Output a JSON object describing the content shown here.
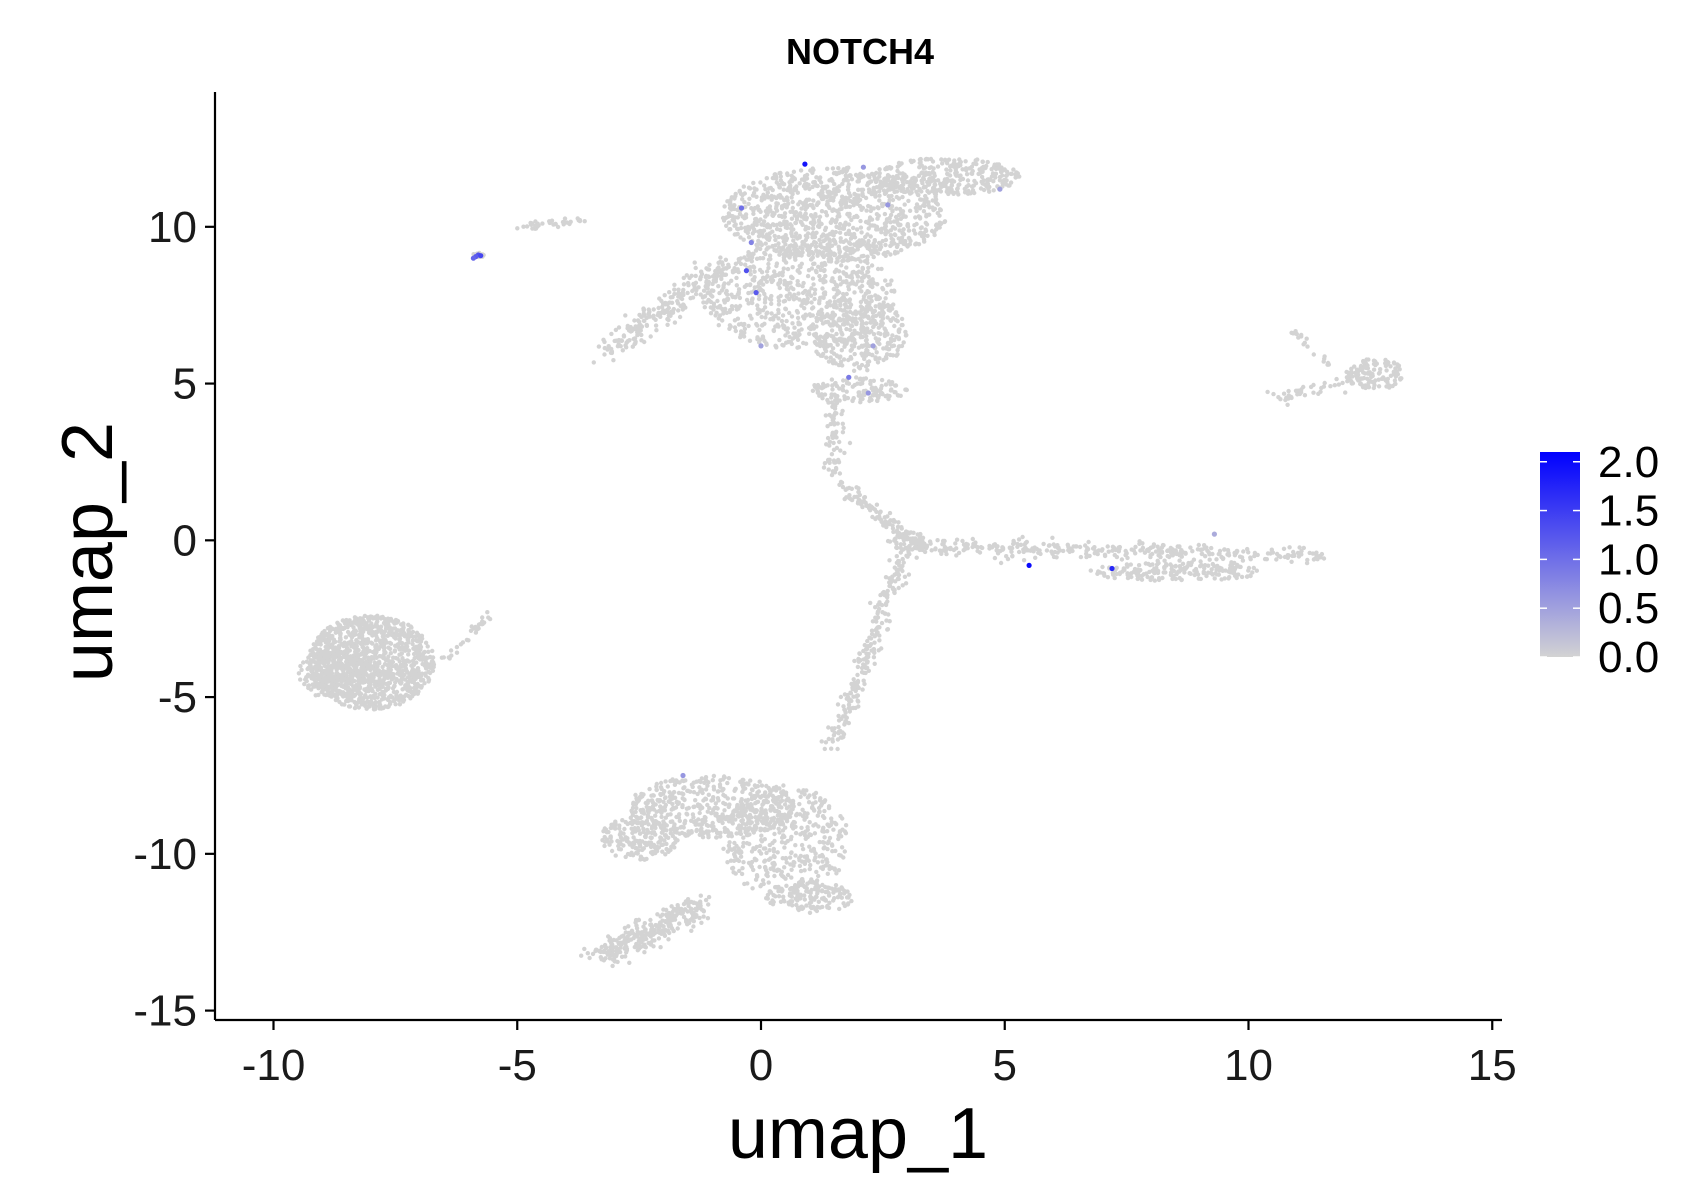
{
  "chart_data": {
    "type": "scatter",
    "title": "NOTCH4",
    "xlabel": "umap_1",
    "ylabel": "umap_2",
    "xlim": [
      -11.2,
      15.2
    ],
    "ylim": [
      -15.3,
      14.3
    ],
    "x_ticks": [
      -10,
      -5,
      0,
      5,
      10,
      15
    ],
    "x_tick_labels": [
      "-10",
      "-5",
      "0",
      "5",
      "10",
      "15"
    ],
    "y_ticks": [
      10,
      5,
      0,
      -5,
      -10,
      -15
    ],
    "y_tick_labels": [
      "10",
      "5",
      "0",
      "-5",
      "-10",
      "-15"
    ],
    "grid": false,
    "color_scale": {
      "low_color": "#d3d3d3",
      "high_color": "#0000ff",
      "min": 0.0,
      "max": 2.1,
      "ticks": [
        2.0,
        1.5,
        1.0,
        0.5,
        0.0
      ],
      "tick_labels": [
        "2.0",
        "1.5",
        "1.0",
        "0.5",
        "0.0"
      ],
      "position": "right"
    },
    "clusters": [
      {
        "shape": "ellipse",
        "cx": -8.0,
        "cy": -3.9,
        "rx": 1.3,
        "ry": 1.5,
        "n": 1200
      },
      {
        "shape": "ellipse",
        "cx": -8.8,
        "cy": -4.3,
        "rx": 0.7,
        "ry": 0.8,
        "n": 200
      },
      {
        "shape": "line",
        "from": [
          -6.5,
          -3.8
        ],
        "to": [
          -5.5,
          -2.3
        ],
        "width": 0.15,
        "n": 30
      },
      {
        "shape": "ellipse",
        "cx": -5.8,
        "cy": 9.1,
        "rx": 0.12,
        "ry": 0.08,
        "n": 15
      },
      {
        "shape": "line",
        "from": [
          -5.0,
          10.0
        ],
        "to": [
          -3.6,
          10.2
        ],
        "width": 0.12,
        "n": 35
      },
      {
        "shape": "ellipse",
        "cx": 1.5,
        "cy": 10.4,
        "rx": 2.3,
        "ry": 1.5,
        "n": 1000
      },
      {
        "shape": "ellipse",
        "cx": 3.8,
        "cy": 11.6,
        "rx": 1.5,
        "ry": 0.6,
        "n": 320
      },
      {
        "shape": "ellipse",
        "cx": 0.8,
        "cy": 7.8,
        "rx": 2.0,
        "ry": 1.7,
        "n": 700
      },
      {
        "shape": "ellipse",
        "cx": 2.0,
        "cy": 6.6,
        "rx": 1.0,
        "ry": 1.2,
        "n": 300
      },
      {
        "shape": "line",
        "from": [
          -3.2,
          6.0
        ],
        "to": [
          -0.8,
          8.8
        ],
        "width": 0.4,
        "n": 220
      },
      {
        "shape": "ellipse",
        "cx": 2.0,
        "cy": 4.8,
        "rx": 1.0,
        "ry": 0.4,
        "n": 120
      },
      {
        "shape": "line",
        "from": [
          1.5,
          4.5
        ],
        "to": [
          1.5,
          2.0
        ],
        "width": 0.2,
        "n": 70
      },
      {
        "shape": "line",
        "from": [
          1.5,
          2.0
        ],
        "to": [
          3.0,
          0.0
        ],
        "width": 0.2,
        "n": 90
      },
      {
        "shape": "ellipse",
        "cx": 3.0,
        "cy": 0.0,
        "rx": 0.4,
        "ry": 0.3,
        "n": 60
      },
      {
        "shape": "line",
        "from": [
          3.0,
          -0.2
        ],
        "to": [
          1.5,
          -6.5
        ],
        "width": 0.25,
        "n": 230
      },
      {
        "shape": "line",
        "from": [
          3.0,
          -0.2
        ],
        "to": [
          11.5,
          -0.5
        ],
        "width": 0.3,
        "n": 350
      },
      {
        "shape": "ellipse",
        "cx": 8.5,
        "cy": -1.0,
        "rx": 1.8,
        "ry": 0.3,
        "n": 180
      },
      {
        "shape": "ellipse",
        "cx": -1.0,
        "cy": -8.5,
        "rx": 1.7,
        "ry": 1.0,
        "n": 500
      },
      {
        "shape": "ellipse",
        "cx": 0.5,
        "cy": -9.6,
        "rx": 1.3,
        "ry": 1.8,
        "n": 450
      },
      {
        "shape": "ellipse",
        "cx": -2.5,
        "cy": -9.5,
        "rx": 0.8,
        "ry": 0.7,
        "n": 200
      },
      {
        "shape": "ellipse",
        "cx": 1.0,
        "cy": -11.4,
        "rx": 0.9,
        "ry": 0.5,
        "n": 150
      },
      {
        "shape": "line",
        "from": [
          -3.3,
          -13.3
        ],
        "to": [
          -1.2,
          -11.6
        ],
        "width": 0.45,
        "n": 300
      },
      {
        "shape": "ellipse",
        "cx": 12.6,
        "cy": 5.3,
        "rx": 0.6,
        "ry": 0.5,
        "n": 120
      },
      {
        "shape": "line",
        "from": [
          10.5,
          4.5
        ],
        "to": [
          12.5,
          5.2
        ],
        "width": 0.2,
        "n": 50
      },
      {
        "shape": "line",
        "from": [
          10.9,
          6.7
        ],
        "to": [
          11.7,
          5.5
        ],
        "width": 0.1,
        "n": 20
      }
    ],
    "expressing_cells": [
      {
        "x": -5.8,
        "y": 9.1,
        "value": 1.3
      },
      {
        "x": -5.75,
        "y": 9.08,
        "value": 1.4
      },
      {
        "x": -5.85,
        "y": 9.05,
        "value": 1.2
      },
      {
        "x": -5.9,
        "y": 9.0,
        "value": 1.1
      },
      {
        "x": -0.4,
        "y": 10.6,
        "value": 1.0
      },
      {
        "x": -0.2,
        "y": 9.5,
        "value": 0.8
      },
      {
        "x": -0.3,
        "y": 8.6,
        "value": 1.3
      },
      {
        "x": -0.1,
        "y": 7.9,
        "value": 1.2
      },
      {
        "x": 0.9,
        "y": 12.0,
        "value": 1.9
      },
      {
        "x": 2.1,
        "y": 11.9,
        "value": 0.6
      },
      {
        "x": 2.6,
        "y": 10.7,
        "value": 0.6
      },
      {
        "x": 1.8,
        "y": 5.2,
        "value": 0.9
      },
      {
        "x": 2.2,
        "y": 4.7,
        "value": 0.6
      },
      {
        "x": 2.3,
        "y": 6.2,
        "value": 0.5
      },
      {
        "x": 0.0,
        "y": 6.2,
        "value": 0.5
      },
      {
        "x": 4.9,
        "y": 11.2,
        "value": 0.5
      },
      {
        "x": 5.5,
        "y": -0.8,
        "value": 2.0
      },
      {
        "x": 7.2,
        "y": -0.9,
        "value": 1.7
      },
      {
        "x": 9.3,
        "y": 0.2,
        "value": 0.4
      },
      {
        "x": -1.6,
        "y": -7.5,
        "value": 0.6
      }
    ]
  }
}
